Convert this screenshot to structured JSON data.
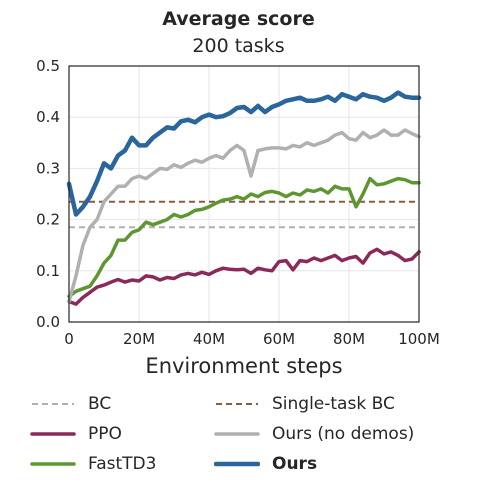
{
  "chart_data": {
    "type": "line",
    "title": "Average score",
    "subtitle": "200 tasks",
    "xlabel": "Environment steps",
    "ylabel": "",
    "xlim": [
      0,
      100
    ],
    "ylim": [
      0,
      0.5
    ],
    "x_unit": "M",
    "x_ticks": [
      0,
      20,
      40,
      60,
      80,
      100
    ],
    "x_tick_labels": [
      "0",
      "20M",
      "40M",
      "60M",
      "80M",
      "100M"
    ],
    "y_ticks": [
      0.0,
      0.1,
      0.2,
      0.3,
      0.4,
      0.5
    ],
    "y_tick_labels": [
      "0.0",
      "0.1",
      "0.2",
      "0.3",
      "0.4",
      "0.5"
    ],
    "grid": true,
    "legend_position": "bottom",
    "series": [
      {
        "name": "BC",
        "color": "#b0b0b0",
        "style": "dashed",
        "width": 2,
        "x": [
          0,
          100
        ],
        "y": [
          0.185,
          0.185
        ]
      },
      {
        "name": "Single-task BC",
        "color": "#8c5a3c",
        "style": "dashed",
        "width": 2,
        "x": [
          0,
          100
        ],
        "y": [
          0.235,
          0.235
        ]
      },
      {
        "name": "PPO",
        "color": "#8b2a5a",
        "style": "solid",
        "width": 3.5,
        "x": [
          0,
          2,
          4,
          6,
          8,
          10,
          12,
          14,
          16,
          18,
          20,
          22,
          24,
          26,
          28,
          30,
          32,
          34,
          36,
          38,
          40,
          42,
          44,
          46,
          48,
          50,
          52,
          54,
          56,
          58,
          60,
          62,
          64,
          66,
          68,
          70,
          72,
          74,
          76,
          78,
          80,
          82,
          84,
          86,
          88,
          90,
          92,
          94,
          96,
          98,
          100
        ],
        "y": [
          0.04,
          0.035,
          0.048,
          0.058,
          0.068,
          0.072,
          0.078,
          0.083,
          0.078,
          0.082,
          0.08,
          0.09,
          0.088,
          0.082,
          0.087,
          0.085,
          0.092,
          0.095,
          0.092,
          0.097,
          0.093,
          0.1,
          0.105,
          0.103,
          0.102,
          0.103,
          0.095,
          0.105,
          0.102,
          0.1,
          0.118,
          0.12,
          0.102,
          0.12,
          0.118,
          0.125,
          0.12,
          0.125,
          0.13,
          0.12,
          0.125,
          0.128,
          0.115,
          0.135,
          0.142,
          0.133,
          0.137,
          0.13,
          0.12,
          0.123,
          0.137
        ]
      },
      {
        "name": "FastTD3",
        "color": "#5e9632",
        "style": "solid",
        "width": 3.5,
        "x": [
          0,
          2,
          4,
          6,
          8,
          10,
          12,
          14,
          16,
          18,
          20,
          22,
          24,
          26,
          28,
          30,
          32,
          34,
          36,
          38,
          40,
          42,
          44,
          46,
          48,
          50,
          52,
          54,
          56,
          58,
          60,
          62,
          64,
          66,
          68,
          70,
          72,
          74,
          76,
          78,
          80,
          82,
          84,
          86,
          88,
          90,
          92,
          94,
          96,
          98,
          100
        ],
        "y": [
          0.05,
          0.06,
          0.065,
          0.07,
          0.09,
          0.115,
          0.13,
          0.16,
          0.16,
          0.175,
          0.18,
          0.195,
          0.19,
          0.195,
          0.2,
          0.21,
          0.205,
          0.21,
          0.218,
          0.22,
          0.225,
          0.232,
          0.238,
          0.24,
          0.245,
          0.24,
          0.25,
          0.245,
          0.253,
          0.255,
          0.252,
          0.245,
          0.252,
          0.248,
          0.258,
          0.255,
          0.26,
          0.252,
          0.265,
          0.26,
          0.26,
          0.225,
          0.25,
          0.28,
          0.268,
          0.27,
          0.275,
          0.28,
          0.278,
          0.272,
          0.272
        ]
      },
      {
        "name": "Ours (no demos)",
        "color": "#b0b0b0",
        "style": "solid",
        "width": 3.5,
        "x": [
          0,
          2,
          4,
          6,
          8,
          10,
          12,
          14,
          16,
          18,
          20,
          22,
          24,
          26,
          28,
          30,
          32,
          34,
          36,
          38,
          40,
          42,
          44,
          46,
          48,
          50,
          52,
          54,
          56,
          58,
          60,
          62,
          64,
          66,
          68,
          70,
          72,
          74,
          76,
          78,
          80,
          82,
          84,
          86,
          88,
          90,
          92,
          94,
          96,
          98,
          100
        ],
        "y": [
          0.04,
          0.09,
          0.15,
          0.185,
          0.2,
          0.235,
          0.25,
          0.265,
          0.265,
          0.28,
          0.285,
          0.28,
          0.29,
          0.3,
          0.298,
          0.307,
          0.302,
          0.31,
          0.316,
          0.312,
          0.32,
          0.325,
          0.32,
          0.335,
          0.345,
          0.335,
          0.285,
          0.335,
          0.338,
          0.34,
          0.34,
          0.338,
          0.345,
          0.342,
          0.35,
          0.345,
          0.35,
          0.355,
          0.365,
          0.37,
          0.358,
          0.355,
          0.37,
          0.36,
          0.365,
          0.375,
          0.365,
          0.365,
          0.375,
          0.368,
          0.362
        ]
      },
      {
        "name": "Ours",
        "color": "#2a659b",
        "style": "solid",
        "width": 4.5,
        "bold": true,
        "x": [
          0,
          2,
          4,
          6,
          8,
          10,
          12,
          14,
          16,
          18,
          20,
          22,
          24,
          26,
          28,
          30,
          32,
          34,
          36,
          38,
          40,
          42,
          44,
          46,
          48,
          50,
          52,
          54,
          56,
          58,
          60,
          62,
          64,
          66,
          68,
          70,
          72,
          74,
          76,
          78,
          80,
          82,
          84,
          86,
          88,
          90,
          92,
          94,
          96,
          98,
          100
        ],
        "y": [
          0.27,
          0.21,
          0.225,
          0.245,
          0.275,
          0.31,
          0.3,
          0.325,
          0.335,
          0.36,
          0.345,
          0.345,
          0.36,
          0.37,
          0.38,
          0.378,
          0.392,
          0.395,
          0.39,
          0.4,
          0.405,
          0.4,
          0.402,
          0.408,
          0.418,
          0.42,
          0.41,
          0.422,
          0.41,
          0.42,
          0.425,
          0.432,
          0.435,
          0.438,
          0.432,
          0.432,
          0.435,
          0.44,
          0.432,
          0.445,
          0.44,
          0.435,
          0.445,
          0.44,
          0.438,
          0.432,
          0.438,
          0.448,
          0.44,
          0.438,
          0.438
        ]
      }
    ]
  },
  "legend": {
    "items": [
      {
        "label": "BC",
        "series": 0
      },
      {
        "label": "Single-task BC",
        "series": 1
      },
      {
        "label": "PPO",
        "series": 2
      },
      {
        "label": "Ours (no demos)",
        "series": 4
      },
      {
        "label": "FastTD3",
        "series": 3
      },
      {
        "label": "Ours",
        "series": 5
      }
    ]
  }
}
